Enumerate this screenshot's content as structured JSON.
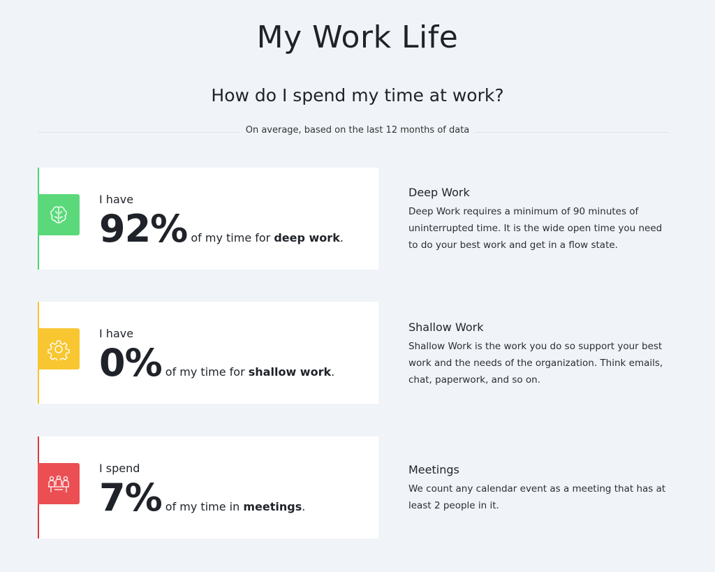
{
  "header": {
    "title": "My Work Life",
    "subtitle": "How do I spend my time at work?",
    "note": "On average, based on the last 12 months of data"
  },
  "cards": [
    {
      "lead": "I have",
      "value": "92%",
      "prefix": "of my time for",
      "keyword": "deep work",
      "suffix": ".",
      "heading": "Deep Work",
      "description": "Deep Work requires a minimum of 90 minutes of uninterrupted time. It is the wide open time you need to do your best work and get in a flow state."
    },
    {
      "lead": "I have",
      "value": "0%",
      "prefix": "of my time for",
      "keyword": "shallow work",
      "suffix": ".",
      "heading": "Shallow Work",
      "description": "Shallow Work is the work you do so support your best work and the needs of the organization. Think emails, chat, paperwork, and so on."
    },
    {
      "lead": "I spend",
      "value": "7%",
      "prefix": "of my time in",
      "keyword": "meetings",
      "suffix": ".",
      "heading": "Meetings",
      "description": "We count any calendar event as a meeting that has at least 2 people in it."
    }
  ]
}
